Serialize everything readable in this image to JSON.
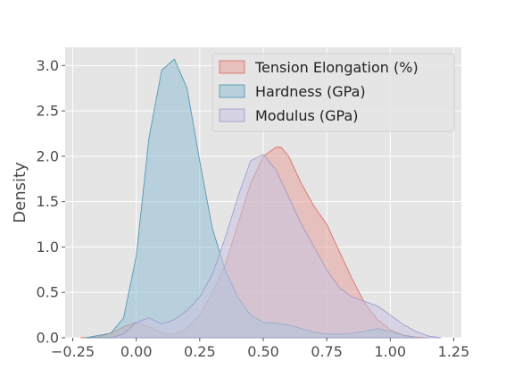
{
  "chart_data": {
    "type": "area",
    "title": "",
    "xlabel": "",
    "ylabel": "Density",
    "xlim": [
      -0.28,
      1.28
    ],
    "ylim": [
      0,
      3.2
    ],
    "xticks": [
      -0.25,
      0.0,
      0.25,
      0.5,
      0.75,
      1.0,
      1.25
    ],
    "xtick_labels": [
      "−0.25",
      "0.00",
      "0.25",
      "0.50",
      "0.75",
      "1.00",
      "1.25"
    ],
    "yticks": [
      0.0,
      0.5,
      1.0,
      1.5,
      2.0,
      2.5,
      3.0
    ],
    "ytick_labels": [
      "0.0",
      "0.5",
      "1.0",
      "1.5",
      "2.0",
      "2.5",
      "3.0"
    ],
    "grid": true,
    "legend_position": "top-right",
    "series": [
      {
        "name": "Tension Elongation (%)",
        "fill": "#e8a29a",
        "stroke": "#d9665a",
        "x": [
          -0.22,
          -0.15,
          -0.1,
          -0.05,
          0.0,
          0.05,
          0.1,
          0.15,
          0.2,
          0.25,
          0.3,
          0.35,
          0.4,
          0.45,
          0.5,
          0.55,
          0.57,
          0.6,
          0.65,
          0.7,
          0.75,
          0.8,
          0.85,
          0.9,
          0.95,
          1.0,
          1.05,
          1.1,
          1.15
        ],
        "y": [
          0.0,
          0.01,
          0.05,
          0.12,
          0.17,
          0.12,
          0.05,
          0.04,
          0.1,
          0.25,
          0.5,
          0.8,
          1.25,
          1.7,
          2.0,
          2.1,
          2.1,
          2.0,
          1.7,
          1.45,
          1.25,
          0.95,
          0.65,
          0.38,
          0.2,
          0.09,
          0.03,
          0.01,
          0.0
        ]
      },
      {
        "name": "Hardness (GPa)",
        "fill": "#93bfd3",
        "stroke": "#4a8fb0",
        "x": [
          -0.2,
          -0.1,
          -0.05,
          0.0,
          0.05,
          0.1,
          0.15,
          0.2,
          0.25,
          0.3,
          0.35,
          0.4,
          0.45,
          0.5,
          0.55,
          0.6,
          0.65,
          0.7,
          0.75,
          0.8,
          0.85,
          0.9,
          0.95,
          1.0,
          1.05,
          1.1
        ],
        "y": [
          0.0,
          0.05,
          0.22,
          0.9,
          2.2,
          2.95,
          3.07,
          2.75,
          1.95,
          1.2,
          0.75,
          0.45,
          0.25,
          0.17,
          0.16,
          0.14,
          0.1,
          0.06,
          0.04,
          0.04,
          0.05,
          0.07,
          0.1,
          0.07,
          0.03,
          0.0
        ]
      },
      {
        "name": "Modulus (GPa)",
        "fill": "#c9c4e2",
        "stroke": "#9b95cc",
        "x": [
          -0.1,
          -0.05,
          0.0,
          0.05,
          0.1,
          0.15,
          0.2,
          0.25,
          0.3,
          0.35,
          0.4,
          0.45,
          0.5,
          0.55,
          0.6,
          0.65,
          0.7,
          0.75,
          0.8,
          0.85,
          0.9,
          0.95,
          1.0,
          1.05,
          1.1,
          1.15,
          1.2
        ],
        "y": [
          0.0,
          0.04,
          0.17,
          0.22,
          0.15,
          0.2,
          0.3,
          0.45,
          0.7,
          1.1,
          1.55,
          1.95,
          2.02,
          1.85,
          1.55,
          1.25,
          1.0,
          0.75,
          0.55,
          0.45,
          0.4,
          0.35,
          0.25,
          0.15,
          0.07,
          0.02,
          0.0
        ]
      }
    ]
  }
}
